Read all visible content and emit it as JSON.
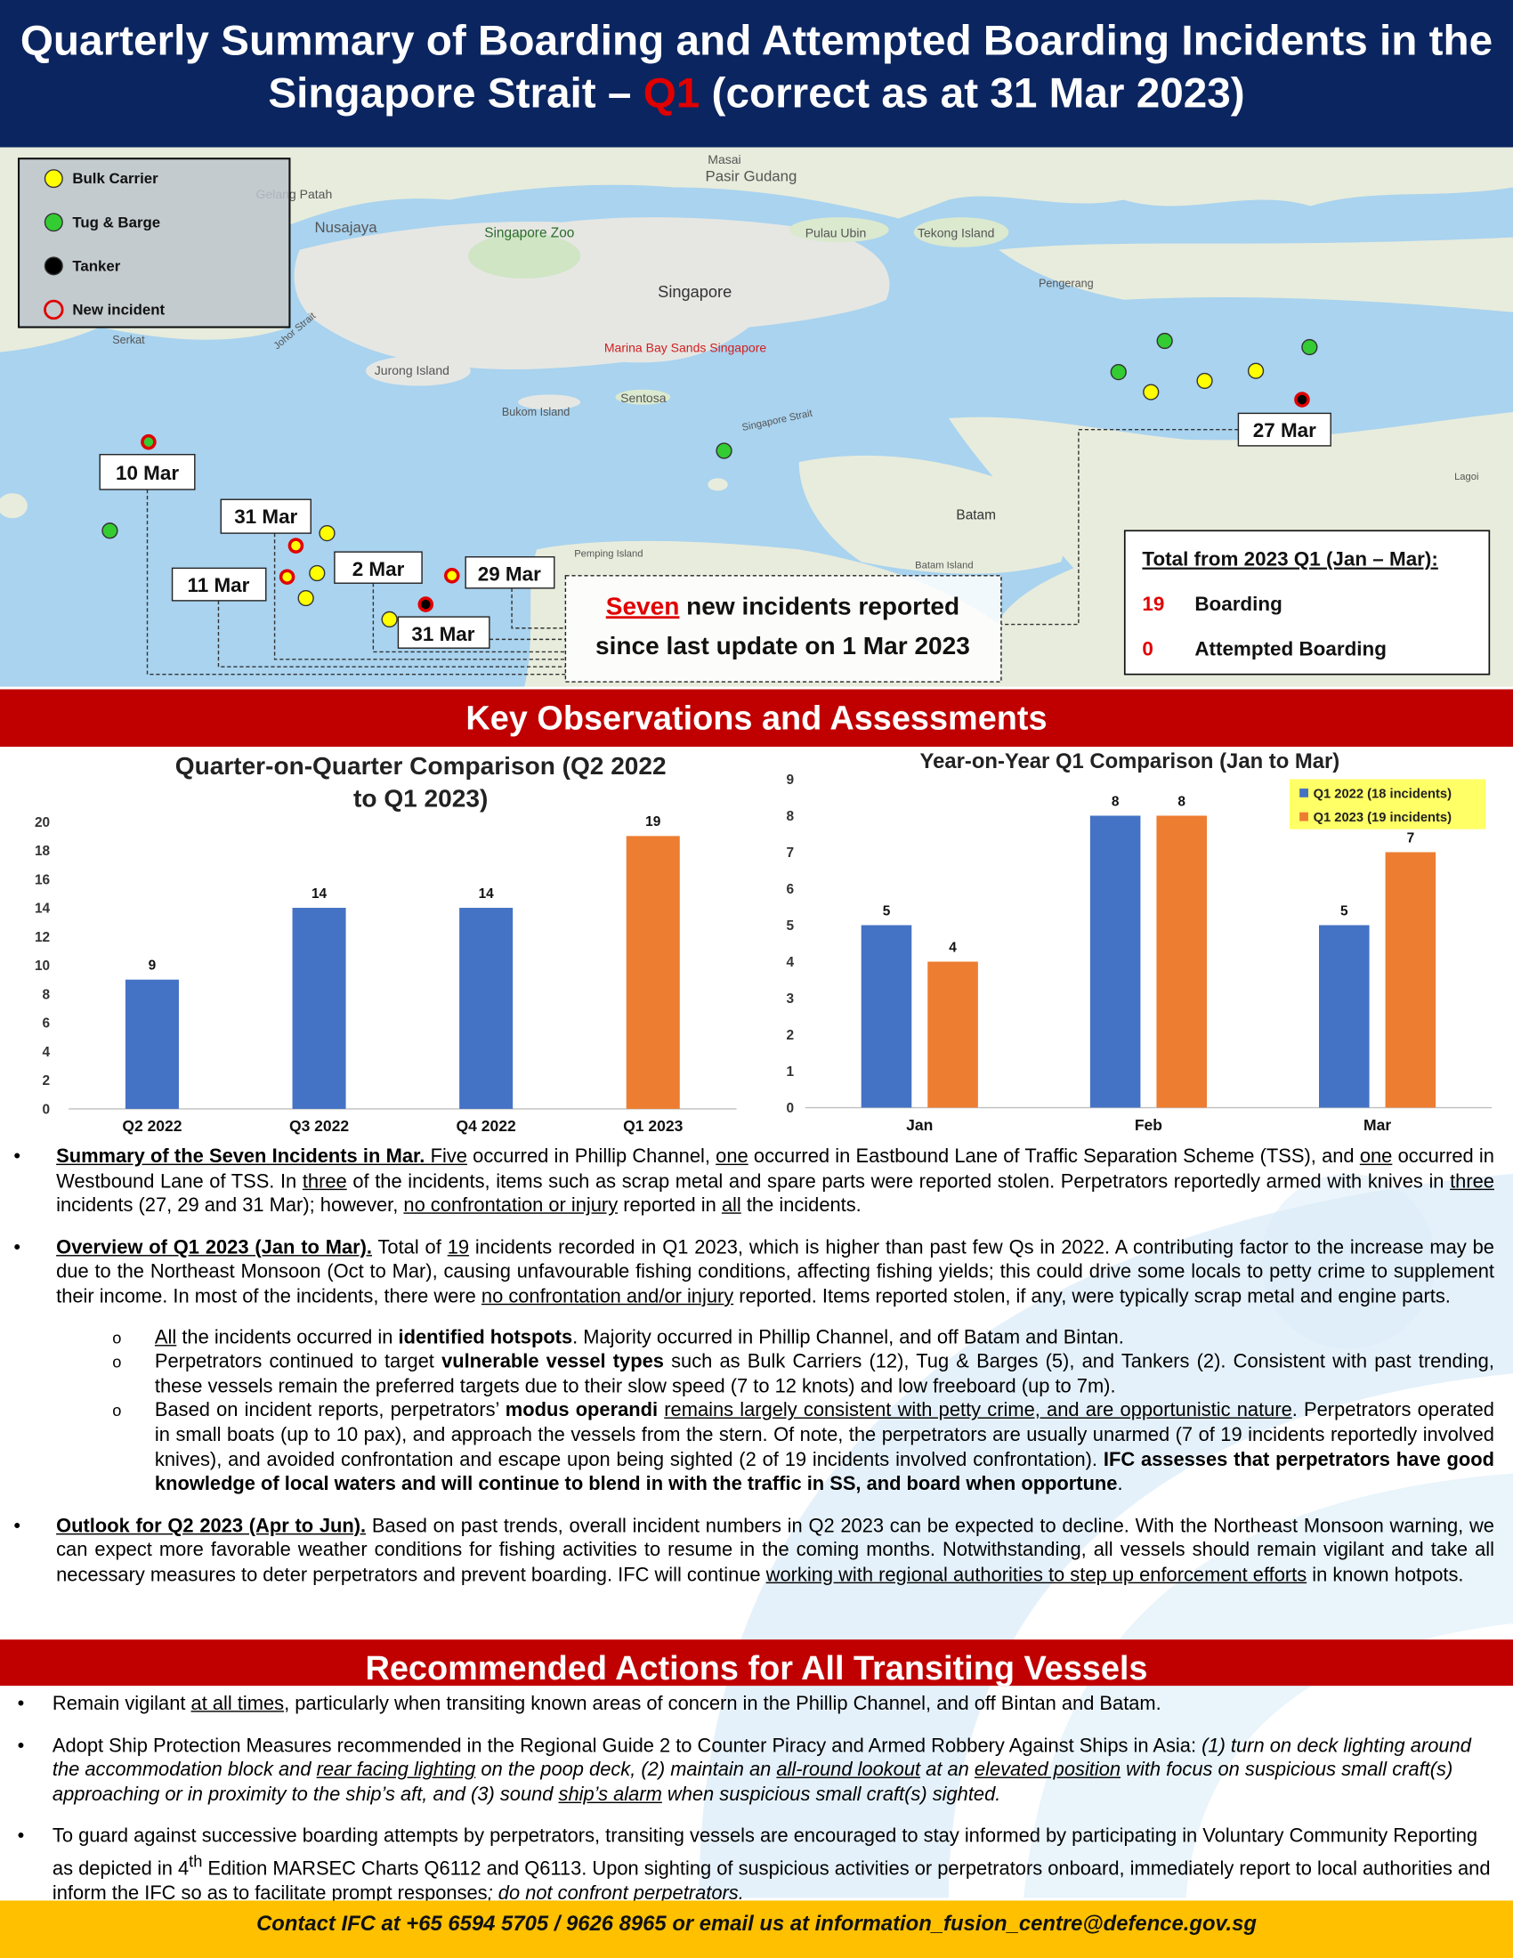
{
  "header": {
    "title": [
      "Quarterly Summary of Boarding and Attempted Boarding Incidents in the Singapore Strait – ",
      "Q1",
      " (correct as at 31 Mar 2023)"
    ]
  },
  "map": {
    "legend": [
      "Bulk Carrier",
      "Tug & Barge",
      "Tanker",
      "New incident"
    ],
    "places": [
      "Masai",
      "Pasir Gudang",
      "Gelang Patah",
      "Nusajaya",
      "Singapore Zoo",
      "Pulau Ubin",
      "Tekong Island",
      "Singapore",
      "Pengerang",
      "Jurong Island",
      "Marina Bay Sands Singapore",
      "Sentosa",
      "Bukom Island",
      "Serkat",
      "Singapore Strait",
      "Batam",
      "Pemping Island",
      "Batam Island",
      "Lagoi",
      "Johor Strait"
    ],
    "dates": [
      "10 Mar",
      "31 Mar",
      "11 Mar",
      "2 Mar",
      "29 Mar",
      "31 Mar",
      "27 Mar"
    ],
    "new_incidents": [
      "Seven",
      " new incidents reported",
      "since last update on 1 Mar 2023"
    ],
    "totals": {
      "title": "Total from 2023 Q1 (Jan – Mar):",
      "rows": [
        [
          19,
          "Boarding"
        ],
        [
          0,
          "Attempted Boarding"
        ]
      ]
    }
  },
  "sections": [
    "Key Observations and Assessments",
    "Recommended Actions for All Transiting Vessels"
  ],
  "chart_data": [
    {
      "type": "bar",
      "title": "Quarter-on-Quarter Comparison (Q2 2022 to Q1 2023)",
      "categories": [
        "Q2 2022",
        "Q3 2022",
        "Q4 2022",
        "Q1 2023"
      ],
      "values": [
        9,
        14,
        14,
        19
      ],
      "colors": [
        "#4472c4",
        "#4472c4",
        "#4472c4",
        "#ed7d31"
      ],
      "ylim": [
        0,
        20
      ],
      "yticks": [
        0,
        2,
        4,
        6,
        8,
        10,
        12,
        14,
        16,
        18,
        20
      ],
      "grid": false
    },
    {
      "type": "bar",
      "title": "Year-on-Year Q1 Comparison (Jan to Mar)",
      "categories": [
        "Jan",
        "Feb",
        "Mar"
      ],
      "series": [
        {
          "name": "Q1 2022 (18 incidents)",
          "color": "#4472c4",
          "values": [
            5,
            8,
            5
          ]
        },
        {
          "name": "Q1 2023 (19 incidents)",
          "color": "#ed7d31",
          "values": [
            4,
            8,
            7
          ]
        }
      ],
      "ylim": [
        0,
        9
      ],
      "yticks": [
        0,
        1,
        2,
        3,
        4,
        5,
        6,
        7,
        8,
        9
      ],
      "grid": false,
      "legend": "top-right"
    }
  ],
  "observations": [
    [
      {
        "bu": "Summary of the Seven Incidents in Mar. "
      },
      {
        "u": "Five"
      },
      " occurred in Phillip Channel, ",
      {
        "u": "one"
      },
      " occurred in Eastbound Lane of Traffic Separation Scheme (TSS), and ",
      {
        "u": "one"
      },
      " occurred in Westbound Lane of TSS. In ",
      {
        "u": "three"
      },
      " of the incidents, items such as scrap metal and spare parts were reported stolen. Perpetrators reportedly armed with knives in ",
      {
        "u": "three"
      },
      " incidents (27, 29 and 31 Mar); however, ",
      {
        "u": "no confrontation or injury"
      },
      " reported in ",
      {
        "u": "all"
      },
      " the incidents."
    ],
    [
      {
        "bu": "Overview of Q1 2023 (Jan to Mar)."
      },
      " Total of ",
      {
        "u": "19"
      },
      " incidents recorded in Q1 2023, which is higher than past few Qs in 2022. A contributing factor to the increase may be due to the Northeast Monsoon (Oct to Mar), causing unfavourable fishing conditions, affecting fishing yields; this could drive some locals to petty crime to supplement their income. In most of the incidents, there were ",
      {
        "u": "no confrontation and/or injury"
      },
      " reported. Items reported stolen, if any, were typically scrap metal and engine parts."
    ],
    [
      {
        "bu": "Outlook for Q2 2023 (Apr to Jun)."
      },
      " Based on past trends, overall incident numbers in Q2 2023 can be expected to decline. With the Northeast Monsoon warning, we can expect more favorable weather conditions for fishing activities to resume in the coming months. Notwithstanding, all vessels should remain vigilant and take all necessary measures to deter perpetrators and prevent boarding. IFC will continue ",
      {
        "u": "working with regional authorities to step up enforcement efforts"
      },
      " in known hotpots."
    ]
  ],
  "sub_points": [
    [
      {
        "u": "All"
      },
      " the incidents occurred in ",
      {
        "b": "identified hotspots"
      },
      ". Majority occurred in Phillip Channel, and off Batam and Bintan."
    ],
    [
      "Perpetrators continued to target ",
      {
        "b": "vulnerable vessel types"
      },
      " such as Bulk Carriers (12), Tug & Barges (5), and Tankers (2). Consistent with past trending, these vessels remain the preferred targets due to their slow speed (7 to 12 knots) and low freeboard (up to 7m)."
    ],
    [
      "Based on incident reports, perpetrators’ ",
      {
        "b": "modus operandi "
      },
      {
        "u": "remains largely consistent with petty crime, and are opportunistic nature"
      },
      ". Perpetrators operated in small boats (up to 10 pax), and approach the vessels from the stern. Of note, the perpetrators are usually unarmed (7 of 19 incidents reportedly involved knives), and avoided confrontation and escape upon being sighted (2 of 19 incidents involved confrontation). ",
      {
        "b": "IFC assesses that perpetrators have good knowledge of local waters and will continue to blend in with the traffic in SS, and board when opportune"
      },
      "."
    ]
  ],
  "recommendations": [
    [
      "Remain vigilant ",
      {
        "u": "at all times"
      },
      ", particularly when transiting known areas of concern in the Phillip Channel, and off Bintan and Batam."
    ],
    [
      "Adopt Ship Protection Measures recommended in the Regional Guide 2 to Counter Piracy and Armed Robbery Against Ships in Asia: ",
      {
        "i": "(1) turn on deck lighting around the accommodation block and "
      },
      {
        "iu": "rear facing lighting"
      },
      {
        "i": " on the poop deck, (2) maintain an "
      },
      {
        "iu": "all-round lookout"
      },
      {
        "i": " at an "
      },
      {
        "iu": "elevated position"
      },
      {
        "i": " with focus on suspicious small craft(s) approaching or in proximity to the ship’s aft, and (3) sound "
      },
      {
        "iu": "ship’s alarm"
      },
      {
        "i": " when suspicious small craft(s) sighted."
      }
    ],
    [
      "To guard against successive boarding attempts by perpetrators, transiting vessels are encouraged to stay informed by participating in Voluntary Community Reporting as depicted in 4",
      {
        "sup": "th"
      },
      " Edition MARSEC Charts Q6112 and Q6113. Upon sighting of suspicious activities or perpetrators onboard, immediately report to local authorities and inform the IFC so as to facilitate prompt responses",
      {
        "i": "; "
      },
      {
        "iu": "do not "
      },
      {
        "i": "confront perpetrators."
      }
    ]
  ],
  "footer": "Contact IFC at +65 6594 5705 / 9626 8965 or email us at information_fusion_centre@defence.gov.sg"
}
